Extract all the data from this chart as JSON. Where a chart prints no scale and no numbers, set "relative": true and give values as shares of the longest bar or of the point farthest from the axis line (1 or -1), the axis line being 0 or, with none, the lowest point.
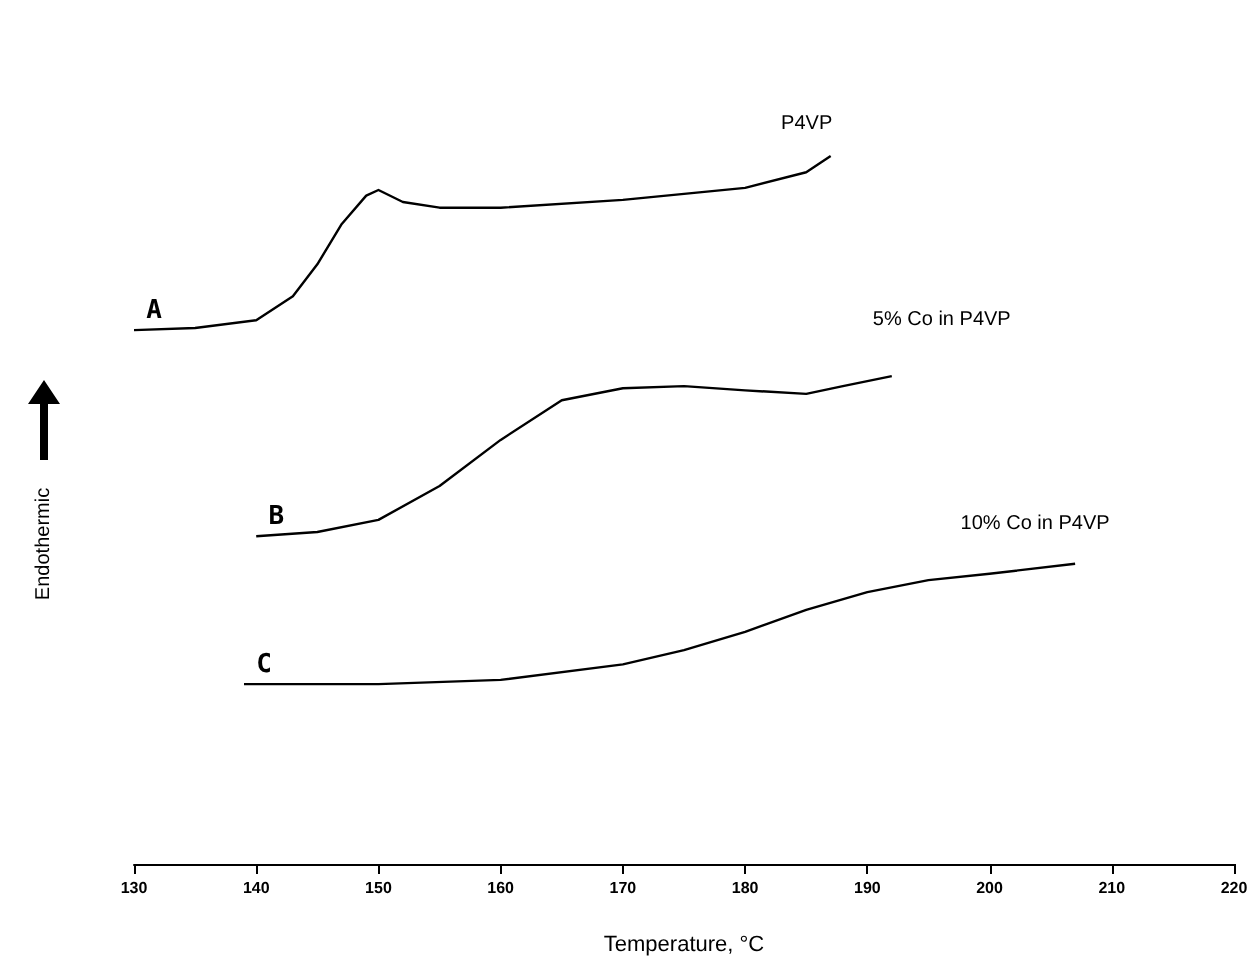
{
  "chart_data": {
    "type": "line",
    "xlabel": "Temperature, °C",
    "ylabel": "Endothermic",
    "relative": true,
    "xlim": [
      130,
      220
    ],
    "xticks": [
      130,
      140,
      150,
      160,
      170,
      180,
      190,
      200,
      210,
      220
    ],
    "grid": false,
    "legend": false,
    "marker": "none",
    "line_style": "solid",
    "series": [
      {
        "name": "P4VP",
        "color": "#000000",
        "x": [
          130,
          135,
          140,
          143,
          145,
          147,
          149,
          150,
          152,
          155,
          160,
          170,
          180,
          185,
          187
        ],
        "values": [
          0.754,
          0.757,
          0.768,
          0.802,
          0.847,
          0.904,
          0.944,
          0.952,
          0.935,
          0.927,
          0.927,
          0.938,
          0.955,
          0.977,
          1
        ]
      },
      {
        "name": "5% Co in P4VP",
        "color": "#000000",
        "x": [
          140,
          145,
          150,
          155,
          160,
          165,
          170,
          175,
          180,
          185,
          188,
          192
        ],
        "values": [
          0.463,
          0.469,
          0.486,
          0.534,
          0.599,
          0.655,
          0.672,
          0.675,
          0.669,
          0.664,
          0.675,
          0.689
        ]
      },
      {
        "name": "10% Co in P4VP",
        "color": "#000000",
        "x": [
          139,
          150,
          160,
          170,
          175,
          180,
          185,
          190,
          195,
          200,
          207
        ],
        "values": [
          0.254,
          0.254,
          0.26,
          0.282,
          0.302,
          0.328,
          0.359,
          0.384,
          0.401,
          0.41,
          0.424
        ]
      }
    ],
    "annotations": [
      {
        "text": "A",
        "x": 130,
        "y": 0.754
      },
      {
        "text": "B",
        "x": 140,
        "y": 0.463
      },
      {
        "text": "C",
        "x": 139,
        "y": 0.254
      }
    ]
  }
}
